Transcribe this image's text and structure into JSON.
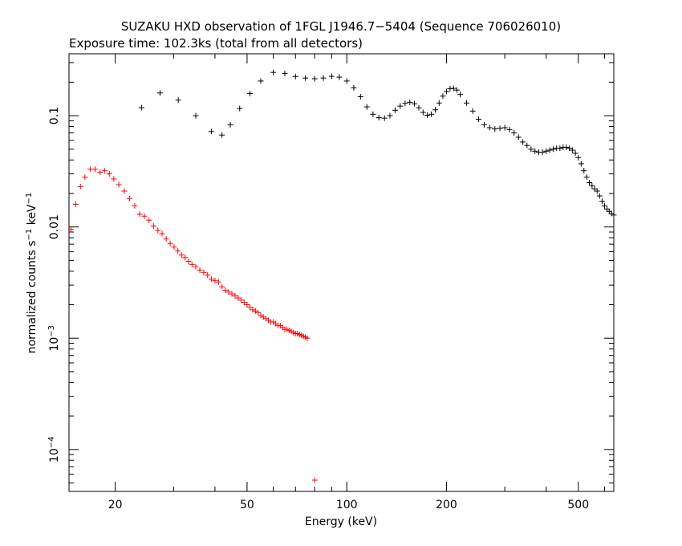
{
  "chart_data": {
    "type": "scatter",
    "title": "SUZAKU HXD observation of 1FGL J1946.7−5404 (Sequence 706026010)",
    "subtitle": "Exposure time: 102.3ks (total from all detectors)",
    "xlabel": "Energy (keV)",
    "ylabel": {
      "main": "normalized counts s",
      "sup1": "−1",
      "mid": " keV",
      "sup2": "−1"
    },
    "x_scale": "log",
    "y_scale": "log",
    "xlim": [
      14.5,
      640
    ],
    "ylim": [
      4.2e-05,
      0.36
    ],
    "x_ticks": [
      {
        "value": 20,
        "label": "20"
      },
      {
        "value": 50,
        "label": "50"
      },
      {
        "value": 100,
        "label": "100"
      },
      {
        "value": 200,
        "label": "200"
      },
      {
        "value": 500,
        "label": "500"
      }
    ],
    "y_ticks": [
      {
        "value": 0.1,
        "label": "0.1"
      },
      {
        "value": 0.01,
        "label": "0.01"
      },
      {
        "value": 0.001,
        "base": "10",
        "exp": "−3"
      },
      {
        "value": 0.0001,
        "base": "10",
        "exp": "−4"
      }
    ],
    "grid": false,
    "legend": "none",
    "series": [
      {
        "color": "#ff0000",
        "points": [
          [
            14.7,
            0.0095,
            14.5,
            15.0,
            0.0088,
            0.0103
          ],
          [
            15.2,
            0.016,
            15.0,
            15.5,
            0.015,
            0.0171
          ],
          [
            15.7,
            0.023,
            15.5,
            16.0,
            0.0218,
            0.0243
          ],
          [
            16.2,
            0.028,
            16.0,
            16.5,
            0.0267,
            0.0293
          ],
          [
            16.8,
            0.033,
            16.5,
            17.1,
            0.0318,
            0.0343
          ],
          [
            17.4,
            0.033,
            17.1,
            17.7,
            0.0318,
            0.0343
          ],
          [
            18.0,
            0.031,
            17.7,
            18.3,
            0.0297,
            0.0323
          ],
          [
            18.6,
            0.032,
            18.3,
            18.9,
            0.0307,
            0.0333
          ],
          [
            19.2,
            0.03,
            18.9,
            19.5,
            0.0287,
            0.0313
          ],
          [
            19.8,
            0.027,
            19.5,
            20.1,
            0.0257,
            0.0284
          ],
          [
            20.5,
            0.024,
            20.1,
            20.9,
            0.0227,
            0.0253
          ],
          [
            21.3,
            0.021,
            20.9,
            21.7,
            0.0197,
            0.0224
          ],
          [
            22.1,
            0.018,
            21.7,
            22.5,
            0.0168,
            0.0193
          ],
          [
            22.9,
            0.0155,
            22.5,
            23.3,
            0.0143,
            0.0168
          ],
          [
            23.7,
            0.013,
            23.3,
            24.1,
            0.0119,
            0.0142
          ],
          [
            24.5,
            0.0125,
            24.1,
            24.9,
            0.0114,
            0.0137
          ],
          [
            25.3,
            0.0115,
            24.9,
            25.7,
            0.0104,
            0.0127
          ],
          [
            26.1,
            0.0102,
            25.7,
            26.5,
            0.0091,
            0.0114
          ],
          [
            26.9,
            0.0093,
            26.5,
            27.3,
            0.0082,
            0.0105
          ],
          [
            27.7,
            0.0087,
            27.3,
            28.1,
            0.0076,
            0.0099
          ]
        ]
      },
      {
        "color": "#000000",
        "points": [
          [
            24.0,
            0.118,
            22.5,
            25.5,
            0.118,
            0.118
          ],
          [
            27.3,
            0.16,
            25.5,
            29.0,
            0.16,
            0.16
          ],
          [
            31.0,
            0.138,
            29.0,
            33.0,
            0.138,
            0.138
          ],
          [
            35.0,
            0.1,
            33.0,
            37.0,
            0.1,
            0.1
          ],
          [
            39.0,
            0.072,
            37.0,
            41.0,
            0.072,
            0.072
          ],
          [
            42.0,
            0.067,
            41.0,
            43.0,
            0.067,
            0.067
          ],
          [
            44.5,
            0.083,
            43.0,
            46.0,
            0.083,
            0.083
          ],
          [
            47.5,
            0.116,
            46.0,
            49.0,
            0.116,
            0.116
          ],
          [
            51.0,
            0.158,
            49.0,
            53.0,
            0.158,
            0.158
          ],
          [
            55.0,
            0.205,
            53.0,
            57.0,
            0.205,
            0.205
          ]
        ]
      }
    ],
    "red_points_hint": [
      [
        14.7,
        0.0095
      ],
      [
        15.2,
        0.016
      ],
      [
        15.7,
        0.023
      ],
      [
        16.2,
        0.028
      ],
      [
        16.8,
        0.033
      ],
      [
        17.4,
        0.033
      ],
      [
        18.0,
        0.031
      ],
      [
        18.6,
        0.032
      ],
      [
        19.2,
        0.03
      ],
      [
        19.8,
        0.027
      ],
      [
        20.5,
        0.024
      ],
      [
        21.3,
        0.021
      ],
      [
        22.1,
        0.018
      ],
      [
        22.9,
        0.0155
      ],
      [
        23.7,
        0.013
      ],
      [
        24.5,
        0.0125
      ],
      [
        25.3,
        0.0115
      ],
      [
        26.1,
        0.0102
      ],
      [
        26.9,
        0.0093
      ],
      [
        27.7,
        0.0087
      ],
      [
        28.5,
        0.0078
      ],
      [
        29.3,
        0.0071
      ],
      [
        30.1,
        0.0066
      ],
      [
        30.9,
        0.0061
      ],
      [
        31.7,
        0.0056
      ],
      [
        32.5,
        0.0053
      ],
      [
        33.3,
        0.0049
      ],
      [
        34.1,
        0.0046
      ],
      [
        35.0,
        0.0044
      ],
      [
        36.0,
        0.0041
      ],
      [
        37.0,
        0.0039
      ],
      [
        38.0,
        0.0037
      ],
      [
        39.0,
        0.0034
      ],
      [
        40.0,
        0.0033
      ],
      [
        41.0,
        0.0032
      ],
      [
        42.0,
        0.0029
      ],
      [
        43.0,
        0.0027
      ],
      [
        44.0,
        0.0026
      ],
      [
        45.0,
        0.0025
      ],
      [
        46.0,
        0.0024
      ],
      [
        47.0,
        0.0023
      ],
      [
        48.0,
        0.0022
      ],
      [
        49.0,
        0.0021
      ],
      [
        50.0,
        0.002
      ],
      [
        51.0,
        0.0019
      ],
      [
        52.0,
        0.0018
      ],
      [
        53.0,
        0.00175
      ],
      [
        54.0,
        0.0017
      ],
      [
        55.0,
        0.0016
      ],
      [
        56.0,
        0.00155
      ],
      [
        57.0,
        0.0015
      ],
      [
        58.0,
        0.00145
      ],
      [
        59.0,
        0.0014
      ],
      [
        60.0,
        0.0014
      ],
      [
        61.0,
        0.00135
      ],
      [
        62.0,
        0.0013
      ],
      [
        63.0,
        0.0013
      ],
      [
        64.0,
        0.00125
      ],
      [
        65.0,
        0.0012
      ],
      [
        66.0,
        0.0012
      ],
      [
        67.0,
        0.00118
      ],
      [
        68.0,
        0.00115
      ],
      [
        69.0,
        0.00112
      ],
      [
        70.0,
        0.0011
      ],
      [
        71.0,
        0.0011
      ],
      [
        72.0,
        0.00108
      ],
      [
        73.0,
        0.00106
      ],
      [
        74.0,
        0.00104
      ],
      [
        75.0,
        0.00102
      ],
      [
        76.0,
        0.001
      ],
      [
        80.0,
        5.3e-05
      ]
    ],
    "black_points_hint": [
      [
        24.0,
        0.118
      ],
      [
        27.3,
        0.16
      ],
      [
        31.0,
        0.138
      ],
      [
        35.0,
        0.1
      ],
      [
        39.0,
        0.072
      ],
      [
        42.0,
        0.067
      ],
      [
        44.5,
        0.083
      ],
      [
        47.5,
        0.116
      ],
      [
        51.0,
        0.158
      ],
      [
        55.0,
        0.205
      ],
      [
        60.0,
        0.245
      ],
      [
        65.0,
        0.24
      ],
      [
        70.0,
        0.225
      ],
      [
        75.0,
        0.218
      ],
      [
        80.0,
        0.215
      ],
      [
        85.0,
        0.218
      ],
      [
        90.0,
        0.226
      ],
      [
        95.0,
        0.222
      ],
      [
        100.0,
        0.205
      ],
      [
        105.0,
        0.178
      ],
      [
        110.0,
        0.148
      ],
      [
        115.0,
        0.12
      ],
      [
        120.0,
        0.103
      ],
      [
        125.0,
        0.096
      ],
      [
        130.0,
        0.095
      ],
      [
        135.0,
        0.1
      ],
      [
        140.0,
        0.112
      ],
      [
        145.0,
        0.122
      ],
      [
        150.0,
        0.129
      ],
      [
        155.0,
        0.132
      ],
      [
        160.0,
        0.128
      ],
      [
        165.0,
        0.118
      ],
      [
        170.0,
        0.107
      ],
      [
        175.0,
        0.101
      ],
      [
        180.0,
        0.103
      ],
      [
        185.0,
        0.113
      ],
      [
        190.0,
        0.13
      ],
      [
        195.0,
        0.15
      ],
      [
        200.0,
        0.165
      ],
      [
        205.0,
        0.175
      ],
      [
        210.0,
        0.176
      ],
      [
        215.0,
        0.17
      ],
      [
        220.0,
        0.155
      ],
      [
        230.0,
        0.13
      ],
      [
        240.0,
        0.11
      ],
      [
        250.0,
        0.093
      ],
      [
        260.0,
        0.083
      ],
      [
        270.0,
        0.078
      ],
      [
        280.0,
        0.076
      ],
      [
        290.0,
        0.077
      ],
      [
        300.0,
        0.078
      ],
      [
        310.0,
        0.075
      ],
      [
        320.0,
        0.07
      ],
      [
        330.0,
        0.064
      ],
      [
        340.0,
        0.058
      ],
      [
        350.0,
        0.054
      ],
      [
        360.0,
        0.05
      ],
      [
        370.0,
        0.048
      ],
      [
        380.0,
        0.047
      ],
      [
        390.0,
        0.047
      ],
      [
        400.0,
        0.048
      ],
      [
        410.0,
        0.049
      ],
      [
        420.0,
        0.05
      ],
      [
        430.0,
        0.051
      ],
      [
        440.0,
        0.051
      ],
      [
        450.0,
        0.052
      ],
      [
        460.0,
        0.052
      ],
      [
        470.0,
        0.051
      ],
      [
        480.0,
        0.049
      ],
      [
        490.0,
        0.046
      ],
      [
        500.0,
        0.042
      ],
      [
        510.0,
        0.037
      ],
      [
        520.0,
        0.032
      ],
      [
        530.0,
        0.028
      ],
      [
        540.0,
        0.025
      ],
      [
        550.0,
        0.0235
      ],
      [
        560.0,
        0.022
      ],
      [
        570.0,
        0.021
      ],
      [
        580.0,
        0.019
      ],
      [
        590.0,
        0.017
      ],
      [
        600.0,
        0.0155
      ],
      [
        610.0,
        0.0145
      ],
      [
        620.0,
        0.0138
      ],
      [
        630.0,
        0.0132
      ],
      [
        640.0,
        0.0128
      ]
    ]
  }
}
